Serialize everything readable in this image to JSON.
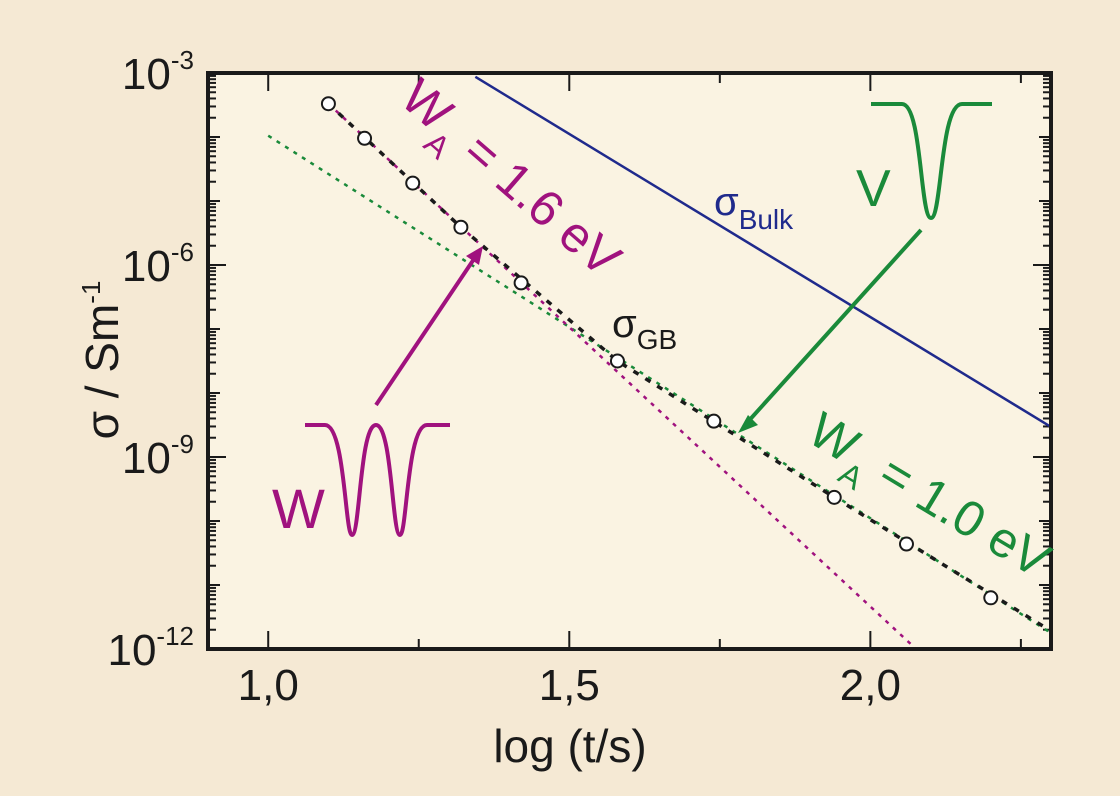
{
  "chart_data": {
    "type": "scatter",
    "title": "",
    "xlabel": "log (t/s)",
    "ylabel": "σ / Sm",
    "ylabel_superscript": "-1",
    "xlim": [
      0.9,
      2.3
    ],
    "ylim_log10": [
      -12,
      -3
    ],
    "yscale": "log",
    "grid": false,
    "x_ticks": [
      {
        "value": 1.0,
        "label": "1,0"
      },
      {
        "value": 1.5,
        "label": "1,5"
      },
      {
        "value": 2.0,
        "label": "2,0"
      }
    ],
    "x_minor_ticks": [
      1.25,
      1.75,
      2.25
    ],
    "y_ticks": [
      {
        "exp": -3,
        "base": "10",
        "sup": "-3"
      },
      {
        "exp": -6,
        "base": "10",
        "sup": "-6"
      },
      {
        "exp": -9,
        "base": "10",
        "sup": "-9"
      },
      {
        "exp": -12,
        "base": "10",
        "sup": "-12"
      }
    ],
    "series": [
      {
        "name": "σGB data",
        "kind": "markers",
        "marker": "open-circle",
        "color": "#1a1a1a",
        "x": [
          1.1,
          1.16,
          1.24,
          1.32,
          1.42,
          1.58,
          1.74,
          1.94,
          2.06,
          2.2
        ],
        "log10_y": [
          -3.48,
          -4.02,
          -4.72,
          -5.41,
          -6.28,
          -7.5,
          -8.44,
          -9.63,
          -10.36,
          -11.2
        ]
      },
      {
        "name": "σGB fit",
        "kind": "dashed-line",
        "color": "#1a1a1a",
        "x": [
          1.1,
          1.32,
          1.58,
          1.94,
          2.3
        ],
        "log10_y": [
          -3.48,
          -5.41,
          -7.5,
          -9.63,
          -11.72
        ]
      },
      {
        "name": "σBulk",
        "kind": "solid-line",
        "color": "#1f2a8c",
        "x": [
          1.344,
          2.3
        ],
        "log10_y": [
          -3.06,
          -8.53
        ]
      },
      {
        "name": "WA = 1.0 eV",
        "kind": "dotted-line",
        "color": "#1a8a3a",
        "x": [
          1.0,
          2.3
        ],
        "log10_y": [
          -3.98,
          -11.75
        ]
      },
      {
        "name": "WA = 1.6 eV",
        "kind": "dotted-line",
        "color": "#a0127e",
        "x": [
          1.1,
          2.076
        ],
        "log10_y": [
          -3.48,
          -12.0
        ]
      }
    ],
    "annotations": {
      "sigma_gb": {
        "sym": "σ",
        "sub": "GB",
        "color": "#1a1a1a"
      },
      "sigma_bulk": {
        "sym": "σ",
        "sub": "Bulk",
        "color": "#1f2a8c"
      },
      "wa_16": {
        "main": "W",
        "sub": "A",
        "rest": " = 1.6 eV",
        "color": "#a0127e"
      },
      "wa_10": {
        "main": "W",
        "sub": "A",
        "rest": " = 1.0 eV",
        "color": "#1a8a3a"
      },
      "w_potential": {
        "label": "W",
        "color": "#a0127e"
      },
      "v_potential": {
        "label": "V",
        "color": "#1a8a3a"
      }
    }
  }
}
